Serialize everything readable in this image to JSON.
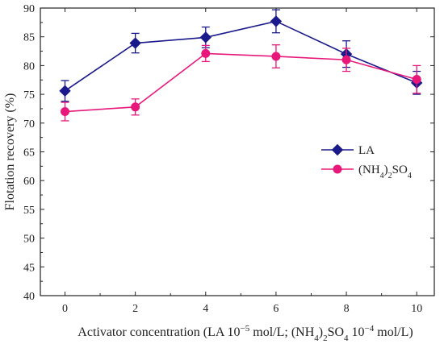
{
  "chart_data": {
    "type": "line",
    "xlabel": {
      "parts": [
        {
          "t": "Activator concentration (LA 10",
          "sup": false,
          "sub": false
        },
        {
          "t": "−5",
          "sup": true,
          "sub": false
        },
        {
          "t": " mol/L; (NH",
          "sup": false,
          "sub": false
        },
        {
          "t": "4",
          "sup": false,
          "sub": true
        },
        {
          "t": ")",
          "sup": false,
          "sub": false
        },
        {
          "t": "2",
          "sup": false,
          "sub": true
        },
        {
          "t": "SO",
          "sup": false,
          "sub": false
        },
        {
          "t": "4",
          "sup": false,
          "sub": true
        },
        {
          "t": " 10",
          "sup": false,
          "sub": false
        },
        {
          "t": "−4",
          "sup": true,
          "sub": false
        },
        {
          "t": " mol/L)",
          "sup": false,
          "sub": false
        }
      ]
    },
    "ylabel": "Flotation recovery (%)",
    "xlim": [
      -0.7,
      10.5
    ],
    "ylim": [
      40,
      90
    ],
    "xticks": [
      0,
      2,
      4,
      6,
      8,
      10
    ],
    "yticks": [
      40,
      45,
      50,
      55,
      60,
      65,
      70,
      75,
      80,
      85,
      90
    ],
    "grid": false,
    "legend_position": "right-center",
    "x": [
      0,
      2,
      4,
      6,
      8,
      10
    ],
    "series": [
      {
        "name": "LA",
        "name_parts": [
          {
            "t": "LA",
            "sup": false,
            "sub": false
          }
        ],
        "color": "#1a1a8c",
        "marker": "diamond",
        "values": [
          75.6,
          83.9,
          84.9,
          87.7,
          82.0,
          77.0
        ],
        "errors": [
          1.8,
          1.7,
          1.8,
          2.0,
          2.3,
          2.0
        ]
      },
      {
        "name": "(NH4)2SO4",
        "name_parts": [
          {
            "t": "(NH",
            "sup": false,
            "sub": false
          },
          {
            "t": "4",
            "sup": false,
            "sub": true
          },
          {
            "t": ")",
            "sup": false,
            "sub": false
          },
          {
            "t": "2",
            "sup": false,
            "sub": true
          },
          {
            "t": "SO",
            "sup": false,
            "sub": false
          },
          {
            "t": "4",
            "sup": false,
            "sub": true
          }
        ],
        "color": "#e8187a",
        "marker": "circle",
        "values": [
          72.0,
          72.8,
          82.1,
          81.6,
          81.0,
          77.6
        ],
        "errors": [
          1.6,
          1.4,
          1.4,
          2.0,
          2.0,
          2.4
        ]
      }
    ]
  }
}
